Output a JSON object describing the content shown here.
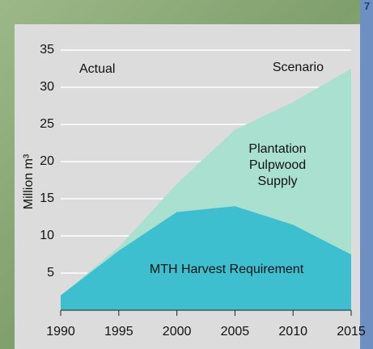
{
  "page_marker": "7",
  "chart_data": {
    "type": "area",
    "ylabel": "Million m³",
    "annotations": [
      "Actual",
      "Scenario"
    ],
    "x": [
      1990,
      1995,
      2000,
      2005,
      2010,
      2015
    ],
    "series": [
      {
        "name": "Plantation Pulpwood Supply",
        "color": "#a9e0cf",
        "values": [
          2,
          8.5,
          17,
          24.3,
          28,
          32.5
        ]
      },
      {
        "name": "MTH Harvest Requirement",
        "color": "#3dbfcf",
        "values": [
          2,
          8,
          13.2,
          14,
          11.5,
          7.5
        ]
      }
    ],
    "xlim": [
      1990,
      2015
    ],
    "xticks": [
      1990,
      1995,
      2000,
      2005,
      2010,
      2015
    ],
    "ylim": [
      0,
      35
    ],
    "yticks": [
      5,
      10,
      15,
      20,
      25,
      30,
      35
    ],
    "grid": true
  }
}
